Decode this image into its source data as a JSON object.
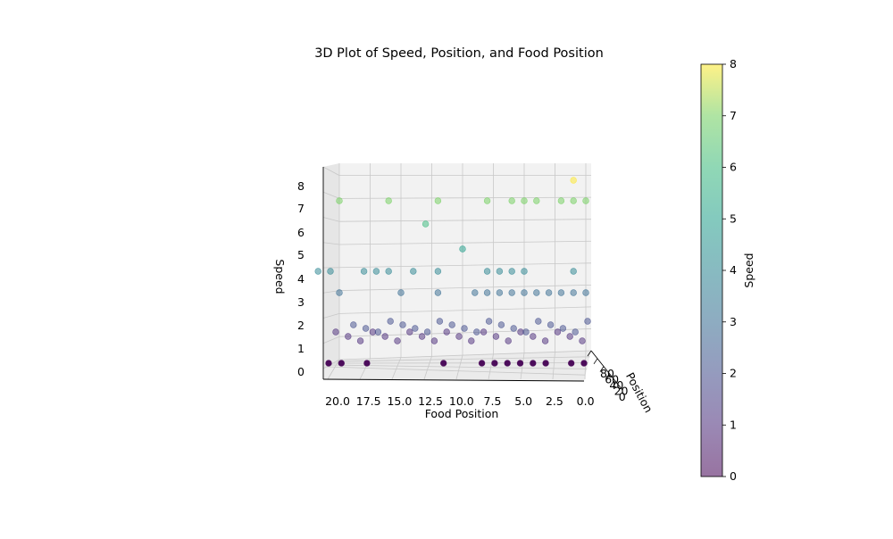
{
  "chart_data": {
    "type": "scatter3d",
    "title": "3D Plot of Speed, Position, and Food Position",
    "xlabel": "Food Position",
    "ylabel": "Position",
    "zlabel": "Speed",
    "xticks": [
      "20.0",
      "17.5",
      "15.0",
      "12.5",
      "10.0",
      "7.5",
      "5.0",
      "2.5",
      "0.0"
    ],
    "xtick_values": [
      20,
      17.5,
      15,
      12.5,
      10,
      7.5,
      5,
      2.5,
      0
    ],
    "yticks": [
      "80",
      "60",
      "40",
      "20",
      "0"
    ],
    "zticks": [
      "0",
      "1",
      "2",
      "3",
      "4",
      "5",
      "6",
      "7",
      "8"
    ],
    "zlim": [
      0,
      8
    ],
    "xlim": [
      0,
      21
    ],
    "grid": true,
    "colormap": "viridis",
    "colorbar": {
      "label": "Speed",
      "ticks": [
        "0",
        "1",
        "2",
        "3",
        "4",
        "5",
        "6",
        "7",
        "8"
      ],
      "range": [
        0,
        8
      ]
    },
    "point_alpha": 0.5,
    "points": [
      {
        "fp": 20,
        "speed": 0
      },
      {
        "fp": 19,
        "speed": 0
      },
      {
        "fp": 17,
        "speed": 0
      },
      {
        "fp": 11,
        "speed": 0
      },
      {
        "fp": 8,
        "speed": 0
      },
      {
        "fp": 7,
        "speed": 0
      },
      {
        "fp": 6,
        "speed": 0
      },
      {
        "fp": 5,
        "speed": 0
      },
      {
        "fp": 4,
        "speed": 0
      },
      {
        "fp": 3,
        "speed": 0
      },
      {
        "fp": 1,
        "speed": 0
      },
      {
        "fp": 0,
        "speed": 0
      },
      {
        "fp": 20,
        "speed": 1
      },
      {
        "fp": 19,
        "speed": 1
      },
      {
        "fp": 18,
        "speed": 1
      },
      {
        "fp": 17,
        "speed": 1
      },
      {
        "fp": 16,
        "speed": 1
      },
      {
        "fp": 15,
        "speed": 1
      },
      {
        "fp": 14,
        "speed": 1
      },
      {
        "fp": 13,
        "speed": 1
      },
      {
        "fp": 12,
        "speed": 1
      },
      {
        "fp": 11,
        "speed": 1
      },
      {
        "fp": 10,
        "speed": 1
      },
      {
        "fp": 9,
        "speed": 1
      },
      {
        "fp": 8,
        "speed": 1
      },
      {
        "fp": 7,
        "speed": 1
      },
      {
        "fp": 6,
        "speed": 1
      },
      {
        "fp": 5,
        "speed": 1
      },
      {
        "fp": 4,
        "speed": 1
      },
      {
        "fp": 3,
        "speed": 1
      },
      {
        "fp": 2,
        "speed": 1
      },
      {
        "fp": 1,
        "speed": 1
      },
      {
        "fp": 0,
        "speed": 1
      },
      {
        "fp": 19,
        "speed": 2
      },
      {
        "fp": 18,
        "speed": 2
      },
      {
        "fp": 17,
        "speed": 2
      },
      {
        "fp": 16,
        "speed": 2
      },
      {
        "fp": 15,
        "speed": 2
      },
      {
        "fp": 14,
        "speed": 2
      },
      {
        "fp": 13,
        "speed": 2
      },
      {
        "fp": 12,
        "speed": 2
      },
      {
        "fp": 11,
        "speed": 2
      },
      {
        "fp": 10,
        "speed": 2
      },
      {
        "fp": 9,
        "speed": 2
      },
      {
        "fp": 8,
        "speed": 2
      },
      {
        "fp": 7,
        "speed": 2
      },
      {
        "fp": 6,
        "speed": 2
      },
      {
        "fp": 5,
        "speed": 2
      },
      {
        "fp": 4,
        "speed": 2
      },
      {
        "fp": 3,
        "speed": 2
      },
      {
        "fp": 2,
        "speed": 2
      },
      {
        "fp": 1,
        "speed": 2
      },
      {
        "fp": 0,
        "speed": 2
      },
      {
        "fp": 20,
        "speed": 3
      },
      {
        "fp": 15,
        "speed": 3
      },
      {
        "fp": 12,
        "speed": 3
      },
      {
        "fp": 9,
        "speed": 3
      },
      {
        "fp": 8,
        "speed": 3
      },
      {
        "fp": 7,
        "speed": 3
      },
      {
        "fp": 6,
        "speed": 3
      },
      {
        "fp": 5,
        "speed": 3
      },
      {
        "fp": 4,
        "speed": 3
      },
      {
        "fp": 3,
        "speed": 3
      },
      {
        "fp": 2,
        "speed": 3
      },
      {
        "fp": 1,
        "speed": 3
      },
      {
        "fp": 0,
        "speed": 3
      },
      {
        "fp": 21,
        "speed": 4
      },
      {
        "fp": 20,
        "speed": 4
      },
      {
        "fp": 18,
        "speed": 4
      },
      {
        "fp": 17,
        "speed": 4
      },
      {
        "fp": 16,
        "speed": 4
      },
      {
        "fp": 14,
        "speed": 4
      },
      {
        "fp": 12,
        "speed": 4
      },
      {
        "fp": 8,
        "speed": 4
      },
      {
        "fp": 7,
        "speed": 4
      },
      {
        "fp": 6,
        "speed": 4
      },
      {
        "fp": 5,
        "speed": 4
      },
      {
        "fp": 1,
        "speed": 4
      },
      {
        "fp": 10,
        "speed": 5
      },
      {
        "fp": 13,
        "speed": 6
      },
      {
        "fp": 20,
        "speed": 7
      },
      {
        "fp": 16,
        "speed": 7
      },
      {
        "fp": 12,
        "speed": 7
      },
      {
        "fp": 8,
        "speed": 7
      },
      {
        "fp": 6,
        "speed": 7
      },
      {
        "fp": 5,
        "speed": 7
      },
      {
        "fp": 4,
        "speed": 7
      },
      {
        "fp": 2,
        "speed": 7
      },
      {
        "fp": 1,
        "speed": 7
      },
      {
        "fp": 0,
        "speed": 7
      },
      {
        "fp": 1,
        "speed": 8
      }
    ]
  }
}
